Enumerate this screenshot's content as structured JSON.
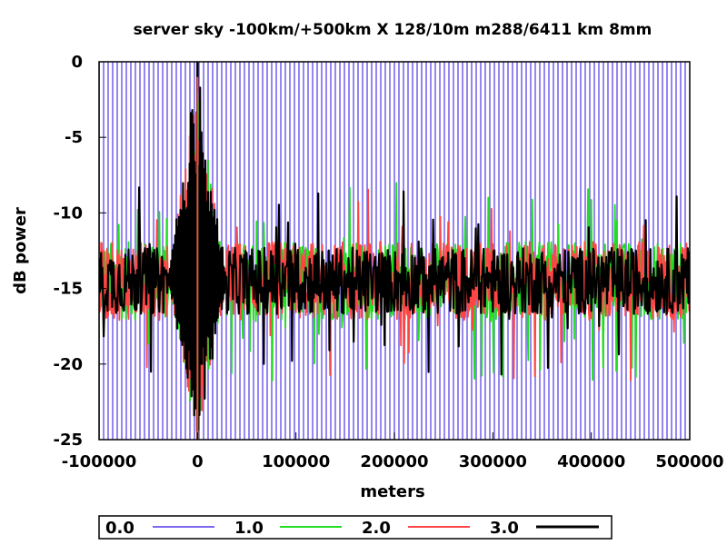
{
  "chart_data": {
    "type": "line",
    "title": "server sky -100km/+500km X 128/10m  m288/6411 km 8mm",
    "xlabel": "meters",
    "ylabel": "dB power",
    "xlim": [
      -100000,
      500000
    ],
    "ylim": [
      -25,
      0
    ],
    "x_ticks": [
      -100000,
      0,
      100000,
      200000,
      300000,
      400000,
      500000
    ],
    "y_ticks": [
      0,
      -5,
      -10,
      -15,
      -20,
      -25
    ],
    "x_tick_labels": [
      "-100000",
      "0",
      "100000",
      "200000",
      "300000",
      "400000",
      "500000"
    ],
    "y_tick_labels": [
      "0",
      "-5",
      "-10",
      "-15",
      "-20",
      "-25"
    ],
    "grid": false,
    "legend_position": "bottom",
    "series": [
      {
        "name": "0.0",
        "color": "#7b68ee",
        "baseline_db": -14.5,
        "span_db": [
          -25,
          0
        ],
        "peak": {
          "x": 0,
          "y": 0
        }
      },
      {
        "name": "1.0",
        "color": "#22dd22",
        "baseline_db": -14.5,
        "span_db": [
          -18.5,
          -10.5
        ],
        "peak": {
          "x": 0,
          "y": -2
        }
      },
      {
        "name": "2.0",
        "color": "#ff4444",
        "baseline_db": -14.5,
        "span_db": [
          -19,
          -10
        ],
        "peak": {
          "x": 0,
          "y": -1
        }
      },
      {
        "name": "3.0",
        "color": "#000000",
        "baseline_db": -14.5,
        "span_db": [
          -17.5,
          -11.5
        ],
        "peak": {
          "x": 0,
          "y": 0
        }
      }
    ]
  }
}
